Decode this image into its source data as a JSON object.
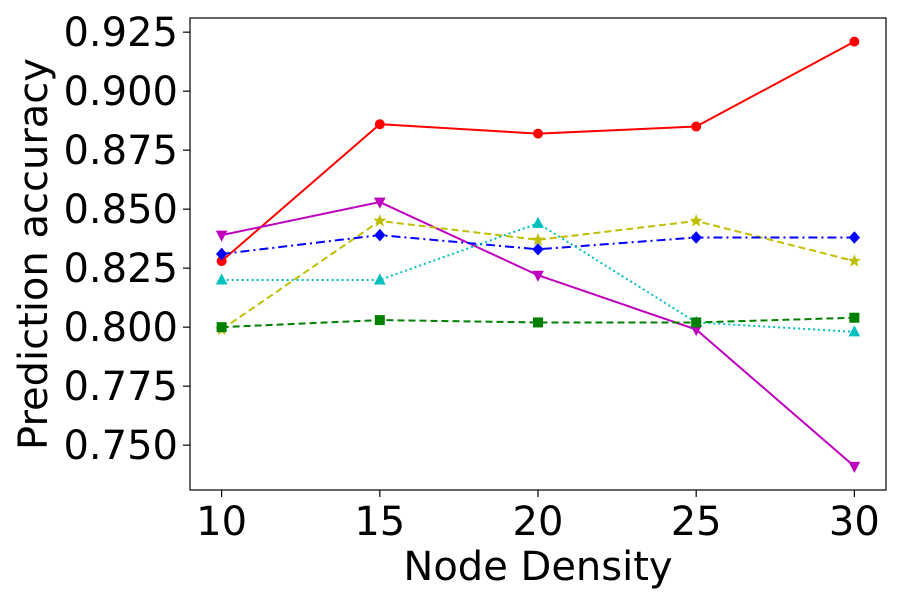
{
  "chart_data": {
    "type": "line",
    "title": "",
    "xlabel": "Node Density",
    "ylabel": "Prediction accuracy",
    "x": [
      10,
      15,
      20,
      25,
      30
    ],
    "xlim": [
      9,
      31
    ],
    "ylim": [
      0.731,
      0.931
    ],
    "xticks": [
      10,
      15,
      20,
      25,
      30
    ],
    "xtick_labels": [
      "10",
      "15",
      "20",
      "25",
      "30"
    ],
    "yticks": [
      0.75,
      0.775,
      0.8,
      0.825,
      0.85,
      0.875,
      0.9,
      0.925
    ],
    "ytick_labels": [
      "0.750",
      "0.775",
      "0.800",
      "0.825",
      "0.850",
      "0.875",
      "0.900",
      "0.925"
    ],
    "grid": false,
    "legend": "none",
    "series": [
      {
        "name": "red",
        "color": "#ff0000",
        "dash": "solid",
        "marker": "circle",
        "values": [
          0.828,
          0.886,
          0.882,
          0.885,
          0.921
        ]
      },
      {
        "name": "magenta",
        "color": "#bf00bf",
        "dash": "solid",
        "marker": "triangle-down",
        "values": [
          0.839,
          0.853,
          0.822,
          0.799,
          0.741
        ]
      },
      {
        "name": "yellow",
        "color": "#bfbf00",
        "dash": "dashed",
        "marker": "star",
        "values": [
          0.799,
          0.845,
          0.837,
          0.845,
          0.828
        ]
      },
      {
        "name": "blue",
        "color": "#0000ff",
        "dash": "dashdot",
        "marker": "diamond",
        "values": [
          0.831,
          0.839,
          0.833,
          0.838,
          0.838
        ]
      },
      {
        "name": "cyan",
        "color": "#00bfbf",
        "dash": "dotted",
        "marker": "triangle-up",
        "values": [
          0.82,
          0.82,
          0.844,
          0.802,
          0.798
        ]
      },
      {
        "name": "green",
        "color": "#008000",
        "dash": "dashed",
        "marker": "square",
        "values": [
          0.8,
          0.803,
          0.802,
          0.802,
          0.804
        ]
      }
    ]
  }
}
